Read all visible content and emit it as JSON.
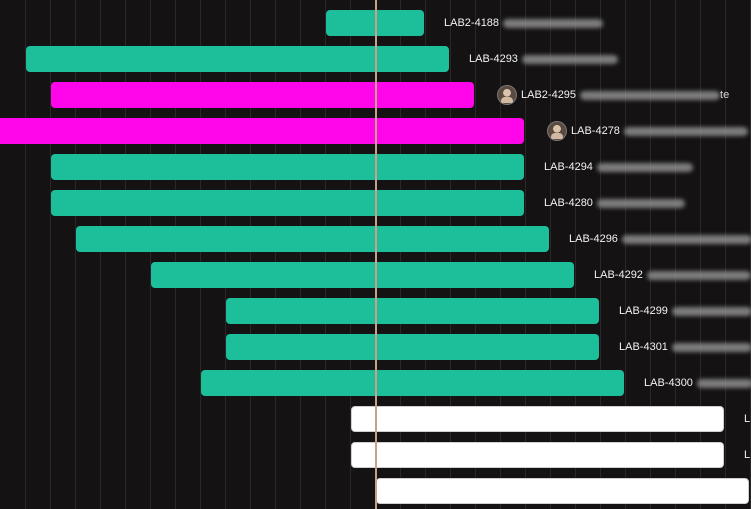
{
  "gantt": {
    "rows": [
      {
        "ticket": "LAB2-4188",
        "color": "teal",
        "has_avatar": false,
        "tail": ""
      },
      {
        "ticket": "LAB-4293",
        "color": "teal",
        "has_avatar": false,
        "tail": ""
      },
      {
        "ticket": "LAB2-4295",
        "color": "magenta",
        "has_avatar": true,
        "tail": "te"
      },
      {
        "ticket": "LAB-4278",
        "color": "magenta",
        "has_avatar": true,
        "tail": ""
      },
      {
        "ticket": "LAB-4294",
        "color": "teal",
        "has_avatar": false,
        "tail": ""
      },
      {
        "ticket": "LAB-4280",
        "color": "teal",
        "has_avatar": false,
        "tail": ""
      },
      {
        "ticket": "LAB-4296",
        "color": "teal",
        "has_avatar": false,
        "tail": ""
      },
      {
        "ticket": "LAB-4292",
        "color": "teal",
        "has_avatar": false,
        "tail": ""
      },
      {
        "ticket": "LAB-4299",
        "color": "teal",
        "has_avatar": false,
        "tail": ""
      },
      {
        "ticket": "LAB-4301",
        "color": "teal",
        "has_avatar": false,
        "tail": ""
      },
      {
        "ticket": "LAB-4300",
        "color": "teal",
        "has_avatar": false,
        "tail": ""
      },
      {
        "ticket": "L",
        "color": "white",
        "has_avatar": false,
        "tail": ""
      },
      {
        "ticket": "L",
        "color": "white",
        "has_avatar": false,
        "tail": ""
      },
      {
        "ticket": "",
        "color": "white",
        "has_avatar": false,
        "tail": ""
      }
    ]
  },
  "colors": {
    "background": "#141213",
    "teal": "#1dbf9b",
    "magenta": "#ff06ea",
    "white": "#ffffff",
    "today_line": "#c9a08c"
  }
}
